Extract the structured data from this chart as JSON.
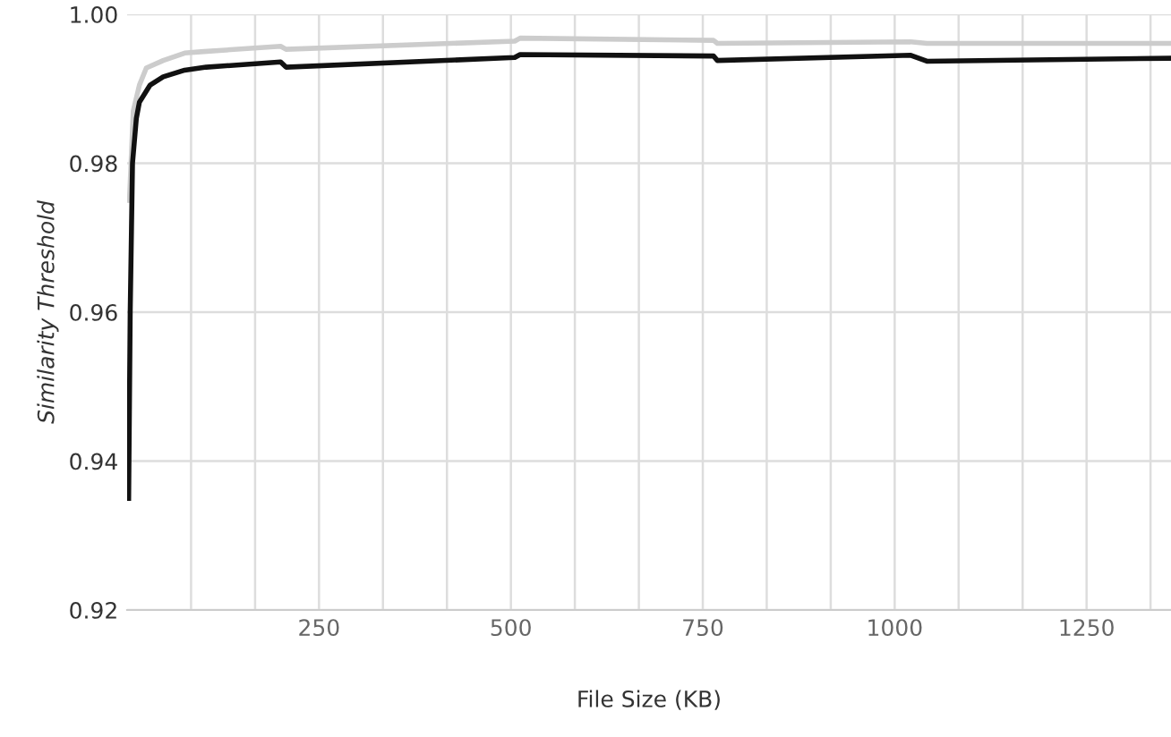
{
  "chart_data": {
    "type": "line",
    "xlabel": "File Size (KB)",
    "ylabel": "Similarity Threshold",
    "xlim": [
      0,
      1360
    ],
    "ylim": [
      0.92,
      1.0
    ],
    "xticks": [
      {
        "value": 83.3,
        "label": null
      },
      {
        "value": 166.7,
        "label": null
      },
      250,
      {
        "value": 333.3,
        "label": null
      },
      {
        "value": 416.7,
        "label": null
      },
      500,
      {
        "value": 583.3,
        "label": null
      },
      {
        "value": 666.7,
        "label": null
      },
      750,
      {
        "value": 833.3,
        "label": null
      },
      {
        "value": 916.7,
        "label": null
      },
      1000,
      {
        "value": 1083.3,
        "label": null
      },
      {
        "value": 1166.7,
        "label": null
      },
      1250,
      {
        "value": 1333.3,
        "label": null
      }
    ],
    "yticks": [
      {
        "value": 0.92,
        "label": "0.92"
      },
      {
        "value": 0.94,
        "label": "0.94"
      },
      {
        "value": 0.96,
        "label": "0.96"
      },
      {
        "value": 0.98,
        "label": "0.98"
      },
      {
        "value": 1.0,
        "label": "1.00"
      }
    ],
    "grid": true,
    "legend": false,
    "marker": "none",
    "line_style": "solid",
    "series": [
      {
        "color": "#cccccc",
        "x": [
          3,
          8,
          16,
          25,
          47,
          75,
          100,
          200,
          207,
          505,
          512,
          764,
          769,
          1021,
          1042,
          1360
        ],
        "values": [
          0.975,
          0.987,
          0.9905,
          0.9928,
          0.9938,
          0.9948,
          0.995,
          0.9957,
          0.9953,
          0.9964,
          0.9968,
          0.9965,
          0.9961,
          0.9963,
          0.9961,
          0.9961
        ]
      },
      {
        "color": "#111111",
        "x": [
          2,
          4,
          7,
          12,
          16,
          30,
          47,
          75,
          103,
          200,
          207,
          505,
          512,
          764,
          769,
          1021,
          1042,
          1360
        ],
        "values": [
          0.935,
          0.96,
          0.98,
          0.986,
          0.9882,
          0.9905,
          0.9916,
          0.9925,
          0.9929,
          0.9936,
          0.9929,
          0.9942,
          0.9946,
          0.9944,
          0.9938,
          0.9945,
          0.9937,
          0.9941
        ]
      }
    ]
  }
}
